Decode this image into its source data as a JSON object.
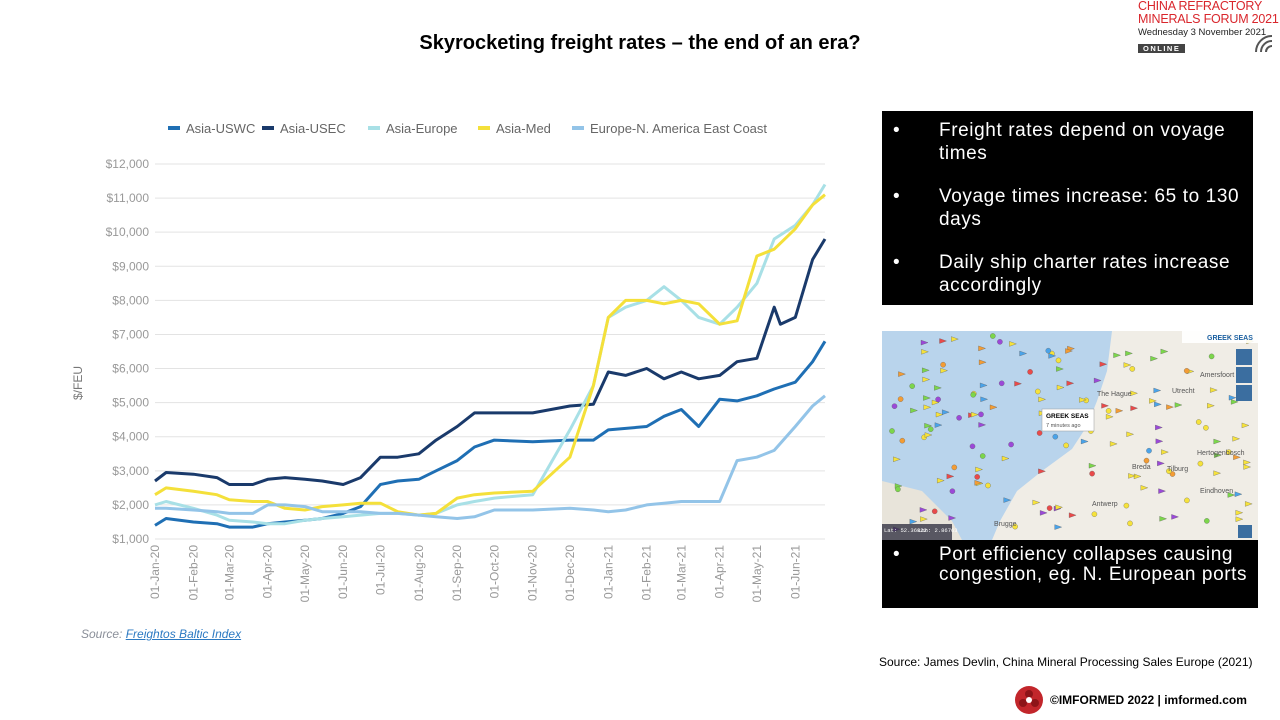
{
  "slide": {
    "title": "Skyrocketing freight rates – the end of an era?",
    "source_left_prefix": "Source: ",
    "source_left_link": "Freightos Baltic Index",
    "source_right": "Source: James Devlin, China Mineral Processing Sales Europe (2021)",
    "footer": "©IMFORMED 2022  |  imformed.com"
  },
  "logo": {
    "line1": "CHINA REFRACTORY",
    "line2": "MINERALS FORUM 2021",
    "line3": "Wednesday 3 November 2021",
    "badge": "ONLINE"
  },
  "bullets_top": [
    "Freight rates depend on voyage times",
    "Voyage times increase: 65 to 130 days",
    "Daily ship charter rates increase accordingly"
  ],
  "bullets_bottom": [
    "Port efficiency collapses causing congestion, eg. N. European ports"
  ],
  "bullet_marker": "•",
  "map": {
    "vessel_label": "GREEK SEAS",
    "vessel_time": "7 minutes ago",
    "header_label": "GREEK SEAS",
    "places": [
      "The Hague",
      "Utrecht",
      "Amersfoort",
      "Breda",
      "Tilburg",
      "Hertogenbosch",
      "Eindhoven",
      "Antwerp",
      "Brugge"
    ],
    "coords": [
      "Lat: 52.36822",
      "Lon: 2.86763"
    ],
    "colors": {
      "sea": "#b9d4ec",
      "land": "#f0ede6"
    }
  },
  "chart_data": {
    "type": "line",
    "title": "",
    "xlabel": "",
    "ylabel": "$/FEU",
    "ylim": [
      1000,
      12000
    ],
    "yticks": [
      1000,
      2000,
      3000,
      4000,
      5000,
      6000,
      7000,
      8000,
      9000,
      10000,
      11000,
      12000
    ],
    "ytick_labels": [
      "$1,000",
      "$2,000",
      "$3,000",
      "$4,000",
      "$5,000",
      "$6,000",
      "$7,000",
      "$8,000",
      "$9,000",
      "$10,000",
      "$11,000",
      "$12,000"
    ],
    "xlim": [
      "2020-01-01",
      "2021-06-25"
    ],
    "x_ticks": [
      "2020-01-01",
      "2020-02-01",
      "2020-03-01",
      "2020-04-01",
      "2020-05-01",
      "2020-06-01",
      "2020-07-01",
      "2020-08-01",
      "2020-09-01",
      "2020-10-01",
      "2020-11-01",
      "2020-12-01",
      "2021-01-01",
      "2021-02-01",
      "2021-03-01",
      "2021-04-01",
      "2021-05-01",
      "2021-06-01"
    ],
    "x_tick_labels": [
      "01-Jan-20",
      "01-Feb-20",
      "01-Mar-20",
      "01-Apr-20",
      "01-May-20",
      "01-Jun-20",
      "01-Jul-20",
      "01-Aug-20",
      "01-Sep-20",
      "01-Oct-20",
      "01-Nov-20",
      "01-Dec-20",
      "01-Jan-21",
      "01-Feb-21",
      "01-Mar-21",
      "01-Apr-21",
      "01-May-21",
      "01-Jun-21"
    ],
    "grid": "horizontal",
    "legend_position": "top",
    "series": [
      {
        "name": "Asia-USWC",
        "color": "#1f6fb4",
        "points": [
          [
            "2020-01-01",
            1400
          ],
          [
            "2020-01-10",
            1600
          ],
          [
            "2020-02-01",
            1500
          ],
          [
            "2020-02-20",
            1450
          ],
          [
            "2020-03-01",
            1350
          ],
          [
            "2020-03-20",
            1350
          ],
          [
            "2020-04-01",
            1450
          ],
          [
            "2020-04-15",
            1500
          ],
          [
            "2020-05-01",
            1550
          ],
          [
            "2020-05-15",
            1600
          ],
          [
            "2020-06-01",
            1750
          ],
          [
            "2020-06-15",
            1950
          ],
          [
            "2020-07-01",
            2600
          ],
          [
            "2020-07-15",
            2700
          ],
          [
            "2020-08-01",
            2750
          ],
          [
            "2020-08-15",
            3000
          ],
          [
            "2020-09-01",
            3300
          ],
          [
            "2020-09-15",
            3700
          ],
          [
            "2020-10-01",
            3900
          ],
          [
            "2020-11-01",
            3850
          ],
          [
            "2020-12-01",
            3900
          ],
          [
            "2020-12-20",
            3900
          ],
          [
            "2021-01-01",
            4200
          ],
          [
            "2021-02-01",
            4300
          ],
          [
            "2021-02-15",
            4600
          ],
          [
            "2021-03-01",
            4800
          ],
          [
            "2021-03-15",
            4300
          ],
          [
            "2021-04-01",
            5100
          ],
          [
            "2021-04-15",
            5050
          ],
          [
            "2021-05-01",
            5200
          ],
          [
            "2021-05-15",
            5400
          ],
          [
            "2021-06-01",
            5600
          ],
          [
            "2021-06-15",
            6200
          ],
          [
            "2021-06-25",
            6800
          ]
        ]
      },
      {
        "name": "Asia-USEC",
        "color": "#1a3a6b",
        "points": [
          [
            "2020-01-01",
            2700
          ],
          [
            "2020-01-10",
            2950
          ],
          [
            "2020-02-01",
            2900
          ],
          [
            "2020-02-20",
            2800
          ],
          [
            "2020-03-01",
            2600
          ],
          [
            "2020-03-20",
            2600
          ],
          [
            "2020-04-01",
            2750
          ],
          [
            "2020-04-15",
            2800
          ],
          [
            "2020-05-01",
            2750
          ],
          [
            "2020-05-15",
            2700
          ],
          [
            "2020-06-01",
            2600
          ],
          [
            "2020-06-15",
            2800
          ],
          [
            "2020-07-01",
            3400
          ],
          [
            "2020-07-15",
            3400
          ],
          [
            "2020-08-01",
            3500
          ],
          [
            "2020-08-15",
            3900
          ],
          [
            "2020-09-01",
            4300
          ],
          [
            "2020-09-15",
            4700
          ],
          [
            "2020-10-01",
            4700
          ],
          [
            "2020-11-01",
            4700
          ],
          [
            "2020-12-01",
            4900
          ],
          [
            "2020-12-20",
            4950
          ],
          [
            "2021-01-01",
            5900
          ],
          [
            "2021-01-15",
            5800
          ],
          [
            "2021-02-01",
            6000
          ],
          [
            "2021-02-15",
            5700
          ],
          [
            "2021-03-01",
            5900
          ],
          [
            "2021-03-15",
            5700
          ],
          [
            "2021-04-01",
            5800
          ],
          [
            "2021-04-15",
            6200
          ],
          [
            "2021-05-01",
            6300
          ],
          [
            "2021-05-15",
            7800
          ],
          [
            "2021-05-20",
            7300
          ],
          [
            "2021-06-01",
            7500
          ],
          [
            "2021-06-15",
            9200
          ],
          [
            "2021-06-25",
            9800
          ]
        ]
      },
      {
        "name": "Asia-Europe",
        "color": "#a8e0e6",
        "points": [
          [
            "2020-01-01",
            2000
          ],
          [
            "2020-01-10",
            2100
          ],
          [
            "2020-02-01",
            1900
          ],
          [
            "2020-02-20",
            1700
          ],
          [
            "2020-03-01",
            1550
          ],
          [
            "2020-03-20",
            1500
          ],
          [
            "2020-04-01",
            1450
          ],
          [
            "2020-04-15",
            1450
          ],
          [
            "2020-05-01",
            1550
          ],
          [
            "2020-05-15",
            1600
          ],
          [
            "2020-06-01",
            1650
          ],
          [
            "2020-06-15",
            1700
          ],
          [
            "2020-07-01",
            1750
          ],
          [
            "2020-07-15",
            1750
          ],
          [
            "2020-08-01",
            1700
          ],
          [
            "2020-08-15",
            1750
          ],
          [
            "2020-09-01",
            2000
          ],
          [
            "2020-09-15",
            2100
          ],
          [
            "2020-10-01",
            2200
          ],
          [
            "2020-11-01",
            2300
          ],
          [
            "2020-12-01",
            4200
          ],
          [
            "2020-12-20",
            5500
          ],
          [
            "2021-01-01",
            7500
          ],
          [
            "2021-01-15",
            7800
          ],
          [
            "2021-02-01",
            8000
          ],
          [
            "2021-02-15",
            8400
          ],
          [
            "2021-03-01",
            8000
          ],
          [
            "2021-03-15",
            7500
          ],
          [
            "2021-04-01",
            7300
          ],
          [
            "2021-04-15",
            7800
          ],
          [
            "2021-05-01",
            8500
          ],
          [
            "2021-05-15",
            9800
          ],
          [
            "2021-06-01",
            10200
          ],
          [
            "2021-06-15",
            10800
          ],
          [
            "2021-06-25",
            11400
          ]
        ]
      },
      {
        "name": "Asia-Med",
        "color": "#f4e03a",
        "points": [
          [
            "2020-01-01",
            2300
          ],
          [
            "2020-01-10",
            2500
          ],
          [
            "2020-02-01",
            2400
          ],
          [
            "2020-02-20",
            2300
          ],
          [
            "2020-03-01",
            2150
          ],
          [
            "2020-03-20",
            2100
          ],
          [
            "2020-04-01",
            2100
          ],
          [
            "2020-04-15",
            1900
          ],
          [
            "2020-05-01",
            1850
          ],
          [
            "2020-05-15",
            1950
          ],
          [
            "2020-06-01",
            2000
          ],
          [
            "2020-06-15",
            2050
          ],
          [
            "2020-07-01",
            2050
          ],
          [
            "2020-07-15",
            1800
          ],
          [
            "2020-08-01",
            1700
          ],
          [
            "2020-08-15",
            1750
          ],
          [
            "2020-09-01",
            2200
          ],
          [
            "2020-09-15",
            2300
          ],
          [
            "2020-10-01",
            2350
          ],
          [
            "2020-11-01",
            2400
          ],
          [
            "2020-12-01",
            3400
          ],
          [
            "2020-12-20",
            5500
          ],
          [
            "2021-01-01",
            7500
          ],
          [
            "2021-01-15",
            8000
          ],
          [
            "2021-02-01",
            8000
          ],
          [
            "2021-02-15",
            7900
          ],
          [
            "2021-03-01",
            8000
          ],
          [
            "2021-03-15",
            7900
          ],
          [
            "2021-04-01",
            7300
          ],
          [
            "2021-04-15",
            7400
          ],
          [
            "2021-05-01",
            9300
          ],
          [
            "2021-05-15",
            9500
          ],
          [
            "2021-06-01",
            10100
          ],
          [
            "2021-06-15",
            10800
          ],
          [
            "2021-06-25",
            11100
          ]
        ]
      },
      {
        "name": "Europe-N. America East Coast",
        "color": "#93c4e8",
        "points": [
          [
            "2020-01-01",
            1900
          ],
          [
            "2020-01-10",
            1900
          ],
          [
            "2020-02-01",
            1850
          ],
          [
            "2020-02-20",
            1800
          ],
          [
            "2020-03-01",
            1750
          ],
          [
            "2020-03-20",
            1750
          ],
          [
            "2020-04-01",
            2000
          ],
          [
            "2020-04-15",
            2000
          ],
          [
            "2020-05-01",
            1950
          ],
          [
            "2020-05-15",
            1800
          ],
          [
            "2020-06-01",
            1800
          ],
          [
            "2020-06-15",
            1800
          ],
          [
            "2020-07-01",
            1750
          ],
          [
            "2020-07-15",
            1750
          ],
          [
            "2020-08-01",
            1700
          ],
          [
            "2020-08-15",
            1650
          ],
          [
            "2020-09-01",
            1600
          ],
          [
            "2020-09-15",
            1650
          ],
          [
            "2020-10-01",
            1850
          ],
          [
            "2020-11-01",
            1850
          ],
          [
            "2020-12-01",
            1900
          ],
          [
            "2020-12-20",
            1850
          ],
          [
            "2021-01-01",
            1800
          ],
          [
            "2021-01-15",
            1850
          ],
          [
            "2021-02-01",
            2000
          ],
          [
            "2021-02-15",
            2050
          ],
          [
            "2021-03-01",
            2100
          ],
          [
            "2021-03-15",
            2100
          ],
          [
            "2021-04-01",
            2100
          ],
          [
            "2021-04-15",
            3300
          ],
          [
            "2021-05-01",
            3400
          ],
          [
            "2021-05-15",
            3600
          ],
          [
            "2021-06-01",
            4300
          ],
          [
            "2021-06-15",
            4900
          ],
          [
            "2021-06-25",
            5200
          ]
        ]
      }
    ],
    "source": "Source: Freightos Baltic Index"
  }
}
